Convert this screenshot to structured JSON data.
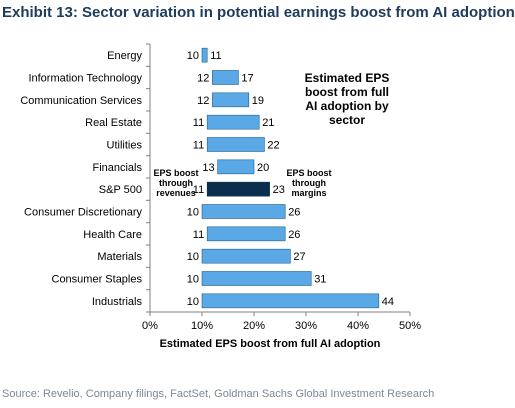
{
  "exhibit_title": "Exhibit 13: Sector variation in potential earnings boost from AI adoption",
  "source": "Source: Revelio, Company filings, FactSet, Goldman Sachs Global Investment Research",
  "chart_data": {
    "type": "bar",
    "orientation": "horizontal-floating",
    "categories": [
      "Energy",
      "Information Technology",
      "Communication Services",
      "Real Estate",
      "Utilities",
      "Financials",
      "S&P 500",
      "Consumer Discretionary",
      "Health Care",
      "Materials",
      "Consumer Staples",
      "Industrials"
    ],
    "series": [
      {
        "name": "",
        "start": [
          10,
          12,
          12,
          11,
          11,
          13,
          11,
          10,
          11,
          10,
          10,
          10
        ],
        "end": [
          11,
          17,
          19,
          21,
          22,
          20,
          23,
          26,
          26,
          27,
          31,
          44
        ]
      }
    ],
    "start_labels": [
      "10",
      "12",
      "12",
      "11",
      "11",
      "13",
      "11",
      "10",
      "11",
      "10",
      "10",
      "10"
    ],
    "end_labels": [
      "11",
      "17",
      "19",
      "21",
      "22",
      "20",
      "23",
      "26",
      "26",
      "27",
      "31",
      "44"
    ],
    "xlabel": "Estimated EPS boost from full AI adoption",
    "xlim": [
      0,
      50
    ],
    "xticks": [
      "0%",
      "10%",
      "20%",
      "30%",
      "40%",
      "50%"
    ],
    "highlight_category": "S&P 500",
    "colors": {
      "bar": "#5aa9e6",
      "highlight": "#0b2e4f",
      "bar_border": "#1f5f8b"
    },
    "annotations": {
      "box_lines": [
        "Estimated EPS",
        "boost from full",
        "AI adoption by",
        "sector"
      ],
      "left_lines": [
        "EPS boost",
        "through",
        "revenues"
      ],
      "right_lines": [
        "EPS boost",
        "through",
        "margins"
      ]
    },
    "grid": false
  }
}
